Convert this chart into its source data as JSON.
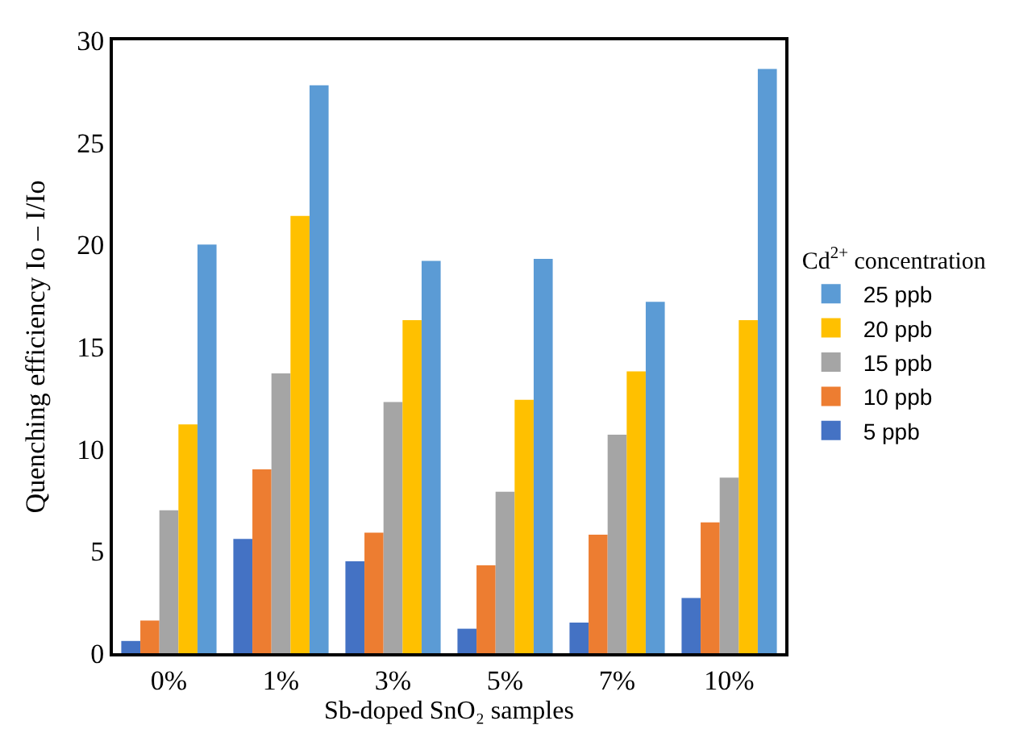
{
  "chart_data": {
    "type": "bar",
    "xlabel": "Sb-doped SnO₂ samples",
    "ylabel": "Quenching efficiency Io – I/Io",
    "legend_title": "Cd$^{2+}$ concentration",
    "categories": [
      "0%",
      "1%",
      "3%",
      "5%",
      "7%",
      "10%"
    ],
    "series": [
      {
        "name": "5 ppb",
        "color": "#4472c4",
        "values": [
          0.6,
          5.6,
          4.5,
          1.2,
          1.5,
          2.7
        ]
      },
      {
        "name": "10 ppb",
        "color": "#ed7d31",
        "values": [
          1.6,
          9.0,
          5.9,
          4.3,
          5.8,
          6.4
        ]
      },
      {
        "name": "15 ppb",
        "color": "#a5a5a5",
        "values": [
          7.0,
          13.7,
          12.3,
          7.9,
          10.7,
          8.6
        ]
      },
      {
        "name": "20 ppb",
        "color": "#ffc000",
        "values": [
          11.2,
          21.4,
          16.3,
          12.4,
          13.8,
          16.3
        ]
      },
      {
        "name": "25 ppb",
        "color": "#5b9bd5",
        "values": [
          20.0,
          27.8,
          19.2,
          19.3,
          17.2,
          28.6
        ]
      }
    ],
    "ylim": [
      0,
      30
    ],
    "yticks": [
      0,
      5,
      10,
      15,
      20,
      25,
      30
    ],
    "grid": false,
    "legend": "right"
  }
}
